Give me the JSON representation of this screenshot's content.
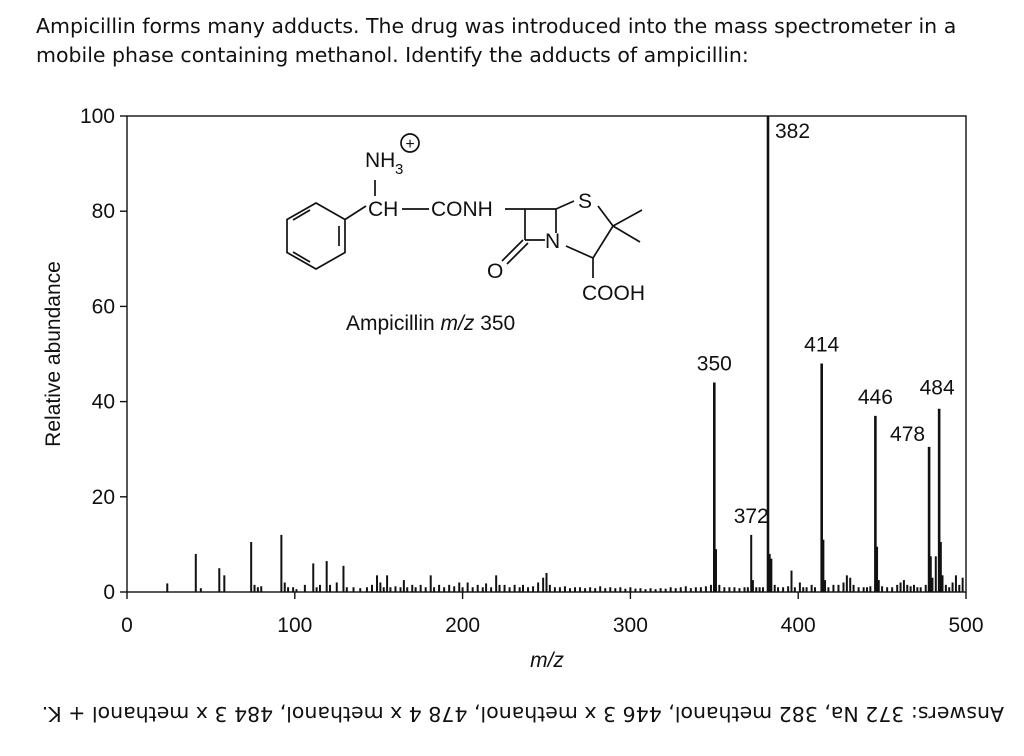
{
  "question": "Ampicillin forms many adducts. The drug was introduced into the mass spectrometer in a mobile phase containing methanol. Identify the adducts of ampicillin:",
  "answer": "Answers: 372 Na, 382 methanol, 446 3 x methanol, 478 4 x methanol, 484 3 x methanol + K.",
  "structure": {
    "nh3": "NH",
    "nh3_sub": "3",
    "charge": "+",
    "ch": "CH",
    "conh": "CONH",
    "s": "S",
    "n": "N",
    "o": "O",
    "cooh": "COOH",
    "caption_prefix": "Ampicillin ",
    "caption_mz": "m/z",
    "caption_value": " 350"
  },
  "chart_data": {
    "type": "bar",
    "title": "",
    "xlabel": "m/z",
    "ylabel": "Relative abundance",
    "xlim": [
      0,
      500
    ],
    "ylim": [
      0,
      100
    ],
    "xticks": [
      0,
      100,
      200,
      300,
      400,
      500
    ],
    "yticks": [
      0,
      20,
      40,
      60,
      80,
      100
    ],
    "grid": false,
    "peak_labels": [
      {
        "x": 350,
        "label": "350"
      },
      {
        "x": 372,
        "label": "372"
      },
      {
        "x": 382,
        "label": "382"
      },
      {
        "x": 414,
        "label": "414"
      },
      {
        "x": 446,
        "label": "446"
      },
      {
        "x": 478,
        "label": "478"
      },
      {
        "x": 484,
        "label": "484"
      }
    ],
    "peaks": [
      {
        "x": 24,
        "y": 1.8
      },
      {
        "x": 41,
        "y": 8.0
      },
      {
        "x": 44,
        "y": 0.8
      },
      {
        "x": 55,
        "y": 5.0
      },
      {
        "x": 58,
        "y": 3.5
      },
      {
        "x": 74,
        "y": 10.5
      },
      {
        "x": 76,
        "y": 1.5
      },
      {
        "x": 78,
        "y": 1.0
      },
      {
        "x": 80,
        "y": 1.2
      },
      {
        "x": 92,
        "y": 12.0
      },
      {
        "x": 94,
        "y": 2.0
      },
      {
        "x": 96,
        "y": 1.0
      },
      {
        "x": 99,
        "y": 1.0
      },
      {
        "x": 101,
        "y": 0.6
      },
      {
        "x": 106,
        "y": 1.5
      },
      {
        "x": 111,
        "y": 6.0
      },
      {
        "x": 113,
        "y": 1.0
      },
      {
        "x": 115,
        "y": 1.5
      },
      {
        "x": 119,
        "y": 6.5
      },
      {
        "x": 121,
        "y": 1.5
      },
      {
        "x": 125,
        "y": 2.0
      },
      {
        "x": 129,
        "y": 5.5
      },
      {
        "x": 131,
        "y": 1.0
      },
      {
        "x": 135,
        "y": 1.0
      },
      {
        "x": 139,
        "y": 0.8
      },
      {
        "x": 143,
        "y": 1.0
      },
      {
        "x": 146,
        "y": 1.5
      },
      {
        "x": 149,
        "y": 3.5
      },
      {
        "x": 151,
        "y": 2.0
      },
      {
        "x": 153,
        "y": 1.0
      },
      {
        "x": 155,
        "y": 3.5
      },
      {
        "x": 157,
        "y": 1.0
      },
      {
        "x": 160,
        "y": 1.2
      },
      {
        "x": 163,
        "y": 1.0
      },
      {
        "x": 165,
        "y": 2.5
      },
      {
        "x": 167,
        "y": 1.0
      },
      {
        "x": 170,
        "y": 1.5
      },
      {
        "x": 172,
        "y": 1.0
      },
      {
        "x": 175,
        "y": 1.5
      },
      {
        "x": 178,
        "y": 1.0
      },
      {
        "x": 181,
        "y": 3.5
      },
      {
        "x": 183,
        "y": 1.0
      },
      {
        "x": 186,
        "y": 1.5
      },
      {
        "x": 189,
        "y": 1.0
      },
      {
        "x": 192,
        "y": 1.5
      },
      {
        "x": 195,
        "y": 1.2
      },
      {
        "x": 198,
        "y": 2.0
      },
      {
        "x": 200,
        "y": 1.0
      },
      {
        "x": 203,
        "y": 2.0
      },
      {
        "x": 206,
        "y": 1.0
      },
      {
        "x": 209,
        "y": 1.5
      },
      {
        "x": 212,
        "y": 1.0
      },
      {
        "x": 214,
        "y": 1.8
      },
      {
        "x": 217,
        "y": 1.0
      },
      {
        "x": 220,
        "y": 3.5
      },
      {
        "x": 222,
        "y": 1.5
      },
      {
        "x": 225,
        "y": 1.5
      },
      {
        "x": 228,
        "y": 1.0
      },
      {
        "x": 231,
        "y": 1.5
      },
      {
        "x": 234,
        "y": 1.0
      },
      {
        "x": 236,
        "y": 1.5
      },
      {
        "x": 239,
        "y": 1.0
      },
      {
        "x": 242,
        "y": 1.2
      },
      {
        "x": 245,
        "y": 2.0
      },
      {
        "x": 248,
        "y": 3.0
      },
      {
        "x": 250,
        "y": 4.0
      },
      {
        "x": 252,
        "y": 1.5
      },
      {
        "x": 255,
        "y": 1.0
      },
      {
        "x": 258,
        "y": 1.0
      },
      {
        "x": 261,
        "y": 1.2
      },
      {
        "x": 264,
        "y": 0.8
      },
      {
        "x": 267,
        "y": 1.0
      },
      {
        "x": 270,
        "y": 1.0
      },
      {
        "x": 273,
        "y": 0.8
      },
      {
        "x": 276,
        "y": 1.0
      },
      {
        "x": 279,
        "y": 0.8
      },
      {
        "x": 282,
        "y": 1.2
      },
      {
        "x": 285,
        "y": 0.8
      },
      {
        "x": 288,
        "y": 1.0
      },
      {
        "x": 291,
        "y": 0.8
      },
      {
        "x": 294,
        "y": 1.0
      },
      {
        "x": 297,
        "y": 0.7
      },
      {
        "x": 300,
        "y": 1.0
      },
      {
        "x": 303,
        "y": 0.7
      },
      {
        "x": 306,
        "y": 0.8
      },
      {
        "x": 309,
        "y": 0.6
      },
      {
        "x": 312,
        "y": 0.8
      },
      {
        "x": 315,
        "y": 0.6
      },
      {
        "x": 318,
        "y": 0.8
      },
      {
        "x": 321,
        "y": 0.7
      },
      {
        "x": 324,
        "y": 1.0
      },
      {
        "x": 327,
        "y": 0.8
      },
      {
        "x": 330,
        "y": 1.0
      },
      {
        "x": 333,
        "y": 1.2
      },
      {
        "x": 336,
        "y": 0.8
      },
      {
        "x": 339,
        "y": 1.0
      },
      {
        "x": 342,
        "y": 1.0
      },
      {
        "x": 345,
        "y": 1.2
      },
      {
        "x": 348,
        "y": 1.5
      },
      {
        "x": 350,
        "y": 44.0
      },
      {
        "x": 351,
        "y": 9.0
      },
      {
        "x": 353,
        "y": 1.5
      },
      {
        "x": 356,
        "y": 1.0
      },
      {
        "x": 359,
        "y": 1.0
      },
      {
        "x": 362,
        "y": 1.0
      },
      {
        "x": 365,
        "y": 0.8
      },
      {
        "x": 368,
        "y": 1.0
      },
      {
        "x": 370,
        "y": 1.0
      },
      {
        "x": 372,
        "y": 12.0
      },
      {
        "x": 373,
        "y": 2.5
      },
      {
        "x": 375,
        "y": 1.0
      },
      {
        "x": 377,
        "y": 1.0
      },
      {
        "x": 379,
        "y": 1.0
      },
      {
        "x": 382,
        "y": 100.0
      },
      {
        "x": 383,
        "y": 8.0
      },
      {
        "x": 384,
        "y": 7.0
      },
      {
        "x": 386,
        "y": 1.5
      },
      {
        "x": 388,
        "y": 1.0
      },
      {
        "x": 391,
        "y": 1.0
      },
      {
        "x": 394,
        "y": 1.2
      },
      {
        "x": 396,
        "y": 4.5
      },
      {
        "x": 398,
        "y": 1.0
      },
      {
        "x": 401,
        "y": 2.0
      },
      {
        "x": 403,
        "y": 1.0
      },
      {
        "x": 405,
        "y": 1.0
      },
      {
        "x": 408,
        "y": 1.5
      },
      {
        "x": 410,
        "y": 1.0
      },
      {
        "x": 414,
        "y": 48.0
      },
      {
        "x": 415,
        "y": 11.0
      },
      {
        "x": 416,
        "y": 2.5
      },
      {
        "x": 418,
        "y": 1.0
      },
      {
        "x": 421,
        "y": 1.5
      },
      {
        "x": 424,
        "y": 1.5
      },
      {
        "x": 427,
        "y": 2.0
      },
      {
        "x": 429,
        "y": 3.5
      },
      {
        "x": 431,
        "y": 3.0
      },
      {
        "x": 433,
        "y": 1.5
      },
      {
        "x": 436,
        "y": 1.0
      },
      {
        "x": 439,
        "y": 1.0
      },
      {
        "x": 441,
        "y": 1.0
      },
      {
        "x": 443,
        "y": 1.2
      },
      {
        "x": 446,
        "y": 37.0
      },
      {
        "x": 447,
        "y": 9.5
      },
      {
        "x": 448,
        "y": 2.5
      },
      {
        "x": 450,
        "y": 1.2
      },
      {
        "x": 453,
        "y": 1.0
      },
      {
        "x": 456,
        "y": 1.0
      },
      {
        "x": 459,
        "y": 1.5
      },
      {
        "x": 461,
        "y": 2.0
      },
      {
        "x": 463,
        "y": 2.5
      },
      {
        "x": 465,
        "y": 1.5
      },
      {
        "x": 467,
        "y": 1.2
      },
      {
        "x": 469,
        "y": 1.5
      },
      {
        "x": 471,
        "y": 1.0
      },
      {
        "x": 473,
        "y": 1.0
      },
      {
        "x": 476,
        "y": 1.5
      },
      {
        "x": 478,
        "y": 30.5
      },
      {
        "x": 479,
        "y": 7.5
      },
      {
        "x": 480,
        "y": 3.0
      },
      {
        "x": 482,
        "y": 7.5
      },
      {
        "x": 484,
        "y": 38.5
      },
      {
        "x": 485,
        "y": 10.5
      },
      {
        "x": 486,
        "y": 3.5
      },
      {
        "x": 488,
        "y": 1.5
      },
      {
        "x": 490,
        "y": 1.0
      },
      {
        "x": 492,
        "y": 2.0
      },
      {
        "x": 494,
        "y": 3.5
      },
      {
        "x": 496,
        "y": 1.5
      },
      {
        "x": 498,
        "y": 3.0
      }
    ]
  }
}
